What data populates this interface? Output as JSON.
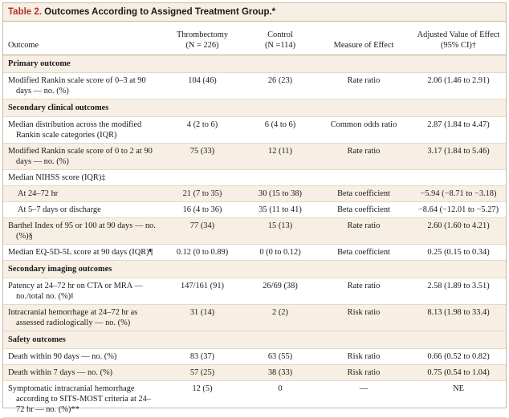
{
  "table": {
    "number": "Table 2.",
    "title": "Outcomes According to Assigned Treatment Group.*",
    "headers": {
      "outcome": "Outcome",
      "thrombectomy_line1": "Thrombectomy",
      "thrombectomy_line2": "(N = 226)",
      "control_line1": "Control",
      "control_line2": "(N =114)",
      "measure": "Measure of Effect",
      "adjusted_line1": "Adjusted Value of Effect",
      "adjusted_line2": "(95% CI)†"
    },
    "rows": [
      {
        "type": "section",
        "outcome": "Primary outcome"
      },
      {
        "type": "row",
        "outcome": "Modified Rankin scale score of 0–3 at 90 days — no. (%)",
        "thrombectomy": "104 (46)",
        "control": "26 (23)",
        "measure": "Rate ratio",
        "adjusted": "2.06 (1.46 to 2.91)"
      },
      {
        "type": "section",
        "outcome": "Secondary clinical outcomes"
      },
      {
        "type": "row",
        "outcome": "Median distribution across the modified Rankin scale categories (IQR)",
        "thrombectomy": "4 (2 to 6)",
        "control": "6 (4 to 6)",
        "measure": "Common odds ratio",
        "adjusted": "2.87 (1.84 to 4.47)"
      },
      {
        "type": "row",
        "outcome": "Modified Rankin scale score of 0 to 2 at 90 days — no. (%)",
        "thrombectomy": "75 (33)",
        "control": "12 (11)",
        "measure": "Rate ratio",
        "adjusted": "3.17 (1.84 to 5.46)"
      },
      {
        "type": "row",
        "outcome": "Median NIHSS score (IQR)‡",
        "thrombectomy": "",
        "control": "",
        "measure": "",
        "adjusted": ""
      },
      {
        "type": "subrow",
        "outcome": "At 24–72 hr",
        "thrombectomy": "21 (7 to 35)",
        "control": "30 (15 to 38)",
        "measure": "Beta coefficient",
        "adjusted": "−5.94 (−8.71 to −3.18)"
      },
      {
        "type": "subrow",
        "outcome": "At 5–7 days or discharge",
        "thrombectomy": "16 (4 to 36)",
        "control": "35 (11 to 41)",
        "measure": "Beta coefficient",
        "adjusted": "−8.64 (−12.01 to −5.27)"
      },
      {
        "type": "row",
        "outcome": "Barthel Index of 95 or 100 at 90 days — no. (%)§",
        "thrombectomy": "77 (34)",
        "control": "15 (13)",
        "measure": "Rate ratio",
        "adjusted": "2.60 (1.60 to 4.21)"
      },
      {
        "type": "row",
        "outcome": "Median EQ-5D-5L score at 90 days (IQR)¶",
        "thrombectomy": "0.12 (0 to 0.89)",
        "control": "0 (0 to 0.12)",
        "measure": "Beta coefficient",
        "adjusted": "0.25 (0.15 to 0.34)"
      },
      {
        "type": "section",
        "outcome": "Secondary imaging outcomes"
      },
      {
        "type": "row",
        "outcome": "Patency at 24–72 hr on CTA or MRA — no./total no. (%)‖",
        "thrombectomy": "147/161 (91)",
        "control": "26/69 (38)",
        "measure": "Rate ratio",
        "adjusted": "2.58 (1.89 to 3.51)"
      },
      {
        "type": "row",
        "outcome": "Intracranial hemorrhage at 24–72 hr as assessed radiologically — no. (%)",
        "thrombectomy": "31 (14)",
        "control": "2 (2)",
        "measure": "Risk ratio",
        "adjusted": "8.13 (1.98 to 33.4)"
      },
      {
        "type": "section",
        "outcome": "Safety outcomes"
      },
      {
        "type": "row",
        "outcome": "Death within 90 days — no. (%)",
        "thrombectomy": "83 (37)",
        "control": "63 (55)",
        "measure": "Risk ratio",
        "adjusted": "0.66 (0.52 to 0.82)"
      },
      {
        "type": "row",
        "outcome": "Death within 7 days — no. (%)",
        "thrombectomy": "57 (25)",
        "control": "38 (33)",
        "measure": "Risk ratio",
        "adjusted": "0.75 (0.54 to 1.04)"
      },
      {
        "type": "row",
        "outcome": "Symptomatic intracranial hemorrhage according to SITS-MOST criteria at 24–72 hr — no. (%)**",
        "thrombectomy": "12 (5)",
        "control": "0",
        "measure": "—",
        "adjusted": "NE"
      }
    ]
  }
}
